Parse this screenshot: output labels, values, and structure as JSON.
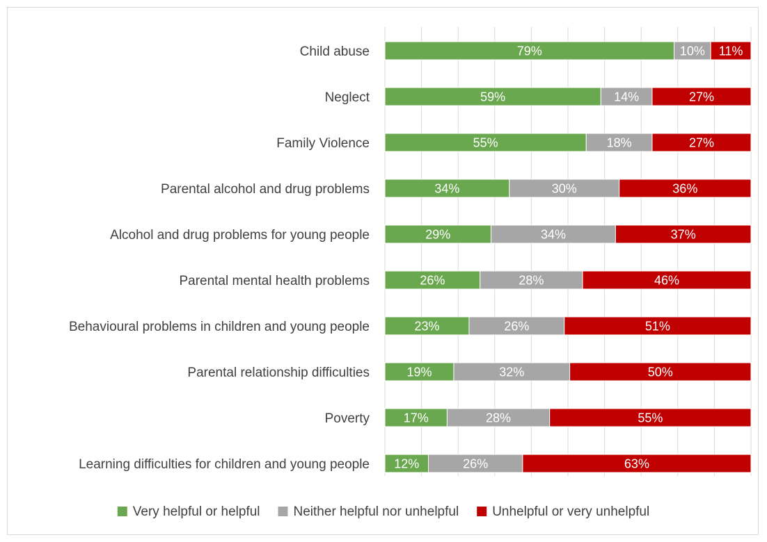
{
  "chart_data": {
    "type": "bar",
    "orientation": "horizontal",
    "stacked": "percent",
    "categories": [
      "Child abuse",
      "Neglect",
      "Family Violence",
      "Parental alcohol and drug problems",
      "Alcohol and drug problems for young people",
      "Parental mental health problems",
      "Behavioural problems in children and young people",
      "Parental relationship difficulties",
      "Poverty",
      "Learning difficulties for children and young people"
    ],
    "series": [
      {
        "name": "Very helpful or helpful",
        "color": "#6aa84f",
        "values": [
          79,
          59,
          55,
          34,
          29,
          26,
          23,
          19,
          17,
          12
        ]
      },
      {
        "name": "Neither helpful nor unhelpful",
        "color": "#a6a6a6",
        "values": [
          10,
          14,
          18,
          30,
          34,
          28,
          26,
          32,
          28,
          26
        ]
      },
      {
        "name": "Unhelpful or very unhelpful",
        "color": "#c00000",
        "values": [
          11,
          27,
          27,
          36,
          37,
          46,
          51,
          50,
          55,
          63
        ]
      }
    ],
    "value_suffix": "%",
    "xlim": [
      0,
      100
    ],
    "grid": true,
    "legend": "bottom"
  }
}
